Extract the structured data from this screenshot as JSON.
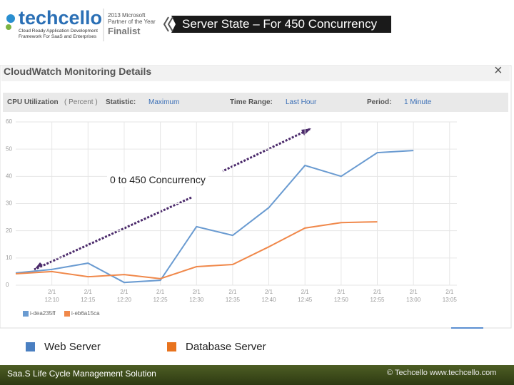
{
  "header": {
    "logo": "techcello",
    "tagline": "Cloud Ready Application Development\nFramework For SaaS and Enterprises",
    "award": "2013 Microsoft\nPartner of the Year",
    "award_status": "Finalist",
    "title": "Server State – For 450 Concurrency"
  },
  "dialog": {
    "title": "CloudWatch Monitoring Details",
    "close": "×",
    "metric": "CPU Utilization",
    "unit": "( Percent )",
    "statistic_label": "Statistic:",
    "statistic": "Maximum",
    "range_label": "Time Range:",
    "range": "Last Hour",
    "period_label": "Period:",
    "period": "1 Minute"
  },
  "chart_data": {
    "type": "line",
    "annotation": "0 to 450 Concurrency",
    "categories": [
      null,
      "2/1\n12:10",
      "2/1\n12:15",
      "2/1\n12:20",
      "2/1\n12:25",
      "2/1\n12:30",
      "2/1\n12:35",
      "2/1\n12:40",
      "2/1\n12:45",
      "2/1\n12:50",
      "2/1\n12:55",
      "2/1\n13:00",
      "2/1\n13:05"
    ],
    "series": [
      {
        "name": "Web Server",
        "instance": "i-dea235ff",
        "color": "#6a9bd1",
        "values": [
          4.5,
          5.8,
          8.1,
          1,
          1.8,
          21.5,
          18.3,
          28.5,
          44,
          40,
          48.7,
          49.5,
          null
        ]
      },
      {
        "name": "Database Server",
        "instance": "i-eb6a15ca",
        "color": "#f0884a",
        "values": [
          4.2,
          5,
          3.1,
          3.9,
          2.4,
          6.8,
          7.6,
          14.1,
          21,
          23,
          23.3,
          null,
          null
        ]
      }
    ],
    "ylim": [
      0,
      60
    ],
    "yticks": [
      0,
      10,
      20,
      30,
      40,
      50,
      60
    ],
    "grid": true
  },
  "footer": {
    "left": "Saa.S Life Cycle Management Solution",
    "right": "© Techcello www.techcello.com"
  }
}
